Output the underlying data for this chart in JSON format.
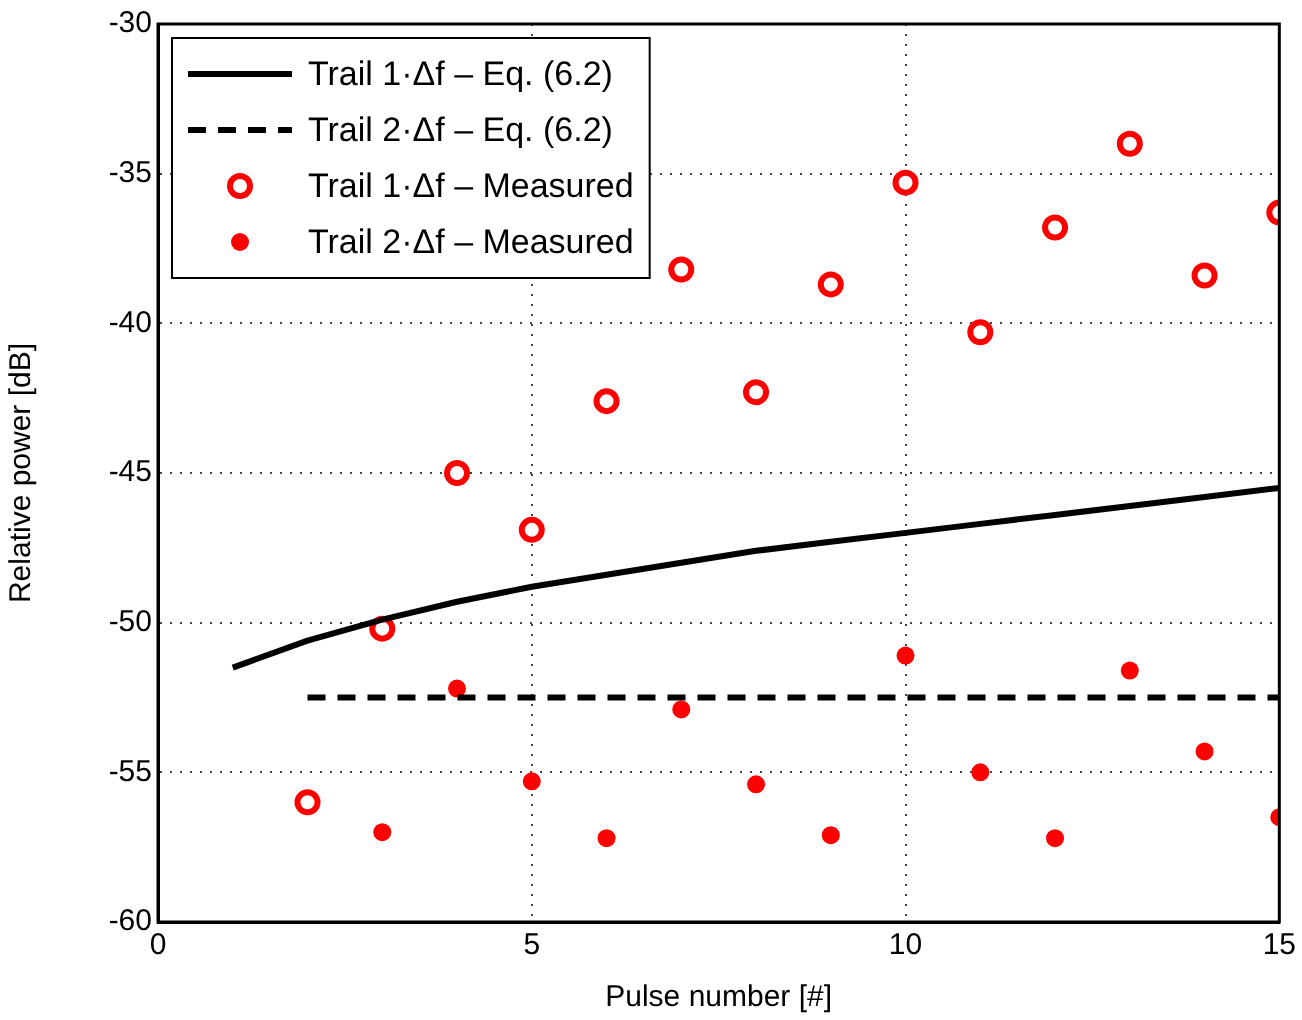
{
  "chart_data": {
    "type": "line",
    "xlabel": "Pulse number [#]",
    "ylabel": "Relative power [dB]",
    "xlim": [
      0,
      15
    ],
    "xticks": [
      0,
      5,
      10,
      15
    ],
    "ylim": [
      -60,
      -30
    ],
    "yticks": [
      -60,
      -55,
      -50,
      -45,
      -40,
      -35,
      -30
    ],
    "grid": true,
    "legend": "top left",
    "series": [
      {
        "name": "Trail 1·Δf – Eq. (6.2)",
        "type": "line",
        "color": "#000000",
        "line_style": "solid",
        "marker": "none",
        "x": [
          1,
          2,
          3,
          4,
          5,
          6,
          7,
          8,
          9,
          10,
          11,
          12,
          13,
          14,
          15
        ],
        "values": [
          -51.5,
          -50.6,
          -49.9,
          -49.3,
          -48.8,
          -48.4,
          -48.0,
          -47.6,
          -47.3,
          -47.0,
          -46.7,
          -46.4,
          -46.1,
          -45.8,
          -45.5
        ]
      },
      {
        "name": "Trail 2·Δf – Eq. (6.2)",
        "type": "line",
        "color": "#000000",
        "line_style": "dashed",
        "marker": "none",
        "x": [
          2,
          15
        ],
        "values": [
          -52.5,
          -52.5
        ]
      },
      {
        "name": "Trail 1·Δf – Measured",
        "type": "scatter",
        "color": "#ff0000",
        "marker": "circle",
        "x": [
          2,
          3,
          4,
          5,
          6,
          7,
          8,
          9,
          10,
          11,
          12,
          13,
          14,
          15
        ],
        "values": [
          -56,
          -50.2,
          -45,
          -46.9,
          -42.6,
          -38.2,
          -42.3,
          -38.7,
          -35.3,
          -40.3,
          -36.8,
          -34,
          -38.4,
          -36.3
        ]
      },
      {
        "name": "Trail 2·Δf – Measured",
        "type": "scatter",
        "color": "#ff0000",
        "marker": "point",
        "x": [
          3,
          4,
          5,
          6,
          7,
          8,
          9,
          10,
          11,
          12,
          13,
          14,
          15
        ],
        "values": [
          -57,
          -52.2,
          -55.3,
          -57.2,
          -52.9,
          -55.4,
          -57.1,
          -51.1,
          -55,
          -57.2,
          -51.6,
          -54.3,
          -56.5
        ]
      }
    ]
  }
}
